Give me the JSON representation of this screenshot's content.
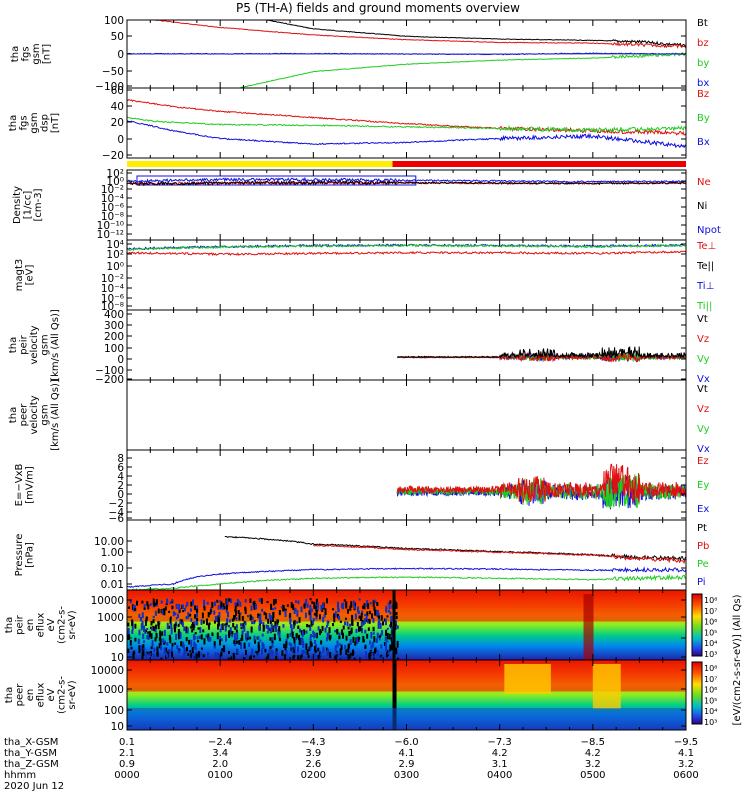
{
  "title": "P5 (TH-A) fields and ground moments overview",
  "colors": {
    "black": "#000000",
    "red": "#e01010",
    "green": "#22cc22",
    "blue": "#1010e0",
    "yellow": "#ffee00",
    "redbar": "#ee0000"
  },
  "panels": [
    {
      "ylabel": [
        "tha",
        "fgs",
        "gsm",
        "[nT]"
      ],
      "ticks": [
        "100",
        "50",
        "0",
        "−50",
        "−100"
      ],
      "legend": [
        {
          "text": "Bt",
          "color": "#000000"
        },
        {
          "text": "bz",
          "color": "#e01010"
        },
        {
          "text": "by",
          "color": "#22cc22"
        },
        {
          "text": "bx",
          "color": "#1010e0"
        }
      ]
    },
    {
      "ylabel": [
        "tha",
        "fgs",
        "gsm",
        "dsp",
        "[nT]"
      ],
      "ticks": [
        "60",
        "40",
        "20",
        "0",
        "−20"
      ],
      "legend": [
        {
          "text": "Bz",
          "color": "#e01010"
        },
        {
          "text": "By",
          "color": "#22cc22"
        },
        {
          "text": "Bx",
          "color": "#1010e0"
        }
      ]
    },
    {
      "ylabel": [
        "Density",
        "[1/cc]",
        "[cm-3]"
      ],
      "ticks": [
        "10²",
        "10⁰",
        "10⁻²",
        "10⁻⁴",
        "10⁻⁶",
        "10⁻⁸",
        "10⁻¹⁰",
        "10⁻¹²"
      ],
      "legend": [
        {
          "text": "Ne",
          "color": "#e01010"
        },
        {
          "text": "Ni",
          "color": "#000000"
        },
        {
          "text": "Npot",
          "color": "#1010e0"
        }
      ]
    },
    {
      "ylabel": [
        "magt3",
        "[eV]"
      ],
      "ticks": [
        "10⁴",
        "10²",
        "10⁰",
        "10⁻²",
        "10⁻⁴",
        "10⁻⁶",
        "10⁻⁸"
      ],
      "legend": [
        {
          "text": "Te⊥",
          "color": "#e01010"
        },
        {
          "text": "Te||",
          "color": "#000000"
        },
        {
          "text": "Ti⊥",
          "color": "#1010e0"
        },
        {
          "text": "Ti||",
          "color": "#22cc22"
        }
      ]
    },
    {
      "ylabel": [
        "tha",
        "peir",
        "velocity",
        "gsm",
        "[km/s (All Qs)]"
      ],
      "ticks": [
        "400",
        "300",
        "200",
        "100",
        "0",
        "−100",
        "−200"
      ],
      "legend": [
        {
          "text": "Vt",
          "color": "#000000"
        },
        {
          "text": "Vz",
          "color": "#e01010"
        },
        {
          "text": "Vy",
          "color": "#22cc22"
        },
        {
          "text": "Vx",
          "color": "#1010e0"
        }
      ]
    },
    {
      "ylabel": [
        "tha",
        "peer",
        "velocity",
        "gsm",
        "[km/s (All Qs)]"
      ],
      "ticks": [],
      "legend": [
        {
          "text": "Vt",
          "color": "#000000"
        },
        {
          "text": "Vz",
          "color": "#e01010"
        },
        {
          "text": "Vy",
          "color": "#22cc22"
        },
        {
          "text": "Vx",
          "color": "#1010e0"
        }
      ]
    },
    {
      "ylabel": [
        "E=−VxB",
        "[mV/m]"
      ],
      "ticks": [
        "8",
        "6",
        "4",
        "2",
        "0",
        "−2",
        "−4",
        "−6"
      ],
      "legend": [
        {
          "text": "Ez",
          "color": "#e01010"
        },
        {
          "text": "Ey",
          "color": "#22cc22"
        },
        {
          "text": "Ex",
          "color": "#1010e0"
        }
      ]
    },
    {
      "ylabel": [
        "Pressure",
        "[nPa]"
      ],
      "ticks": [
        "10.00",
        "1.00",
        "0.10",
        "0.01"
      ],
      "legend": [
        {
          "text": "Pt",
          "color": "#000000"
        },
        {
          "text": "Pb",
          "color": "#e01010"
        },
        {
          "text": "Pe",
          "color": "#22cc22"
        },
        {
          "text": "Pi",
          "color": "#1010e0"
        }
      ]
    },
    {
      "ylabel": [
        "tha",
        "peir",
        "en",
        "eflux",
        "eV",
        "(cm2-s-",
        "sr-eV)"
      ],
      "ticks": [
        "10000",
        "1000",
        "100",
        "10"
      ],
      "legend": []
    },
    {
      "ylabel": [
        "tha",
        "peer",
        "en",
        "eflux",
        "eV",
        "(cm2-s-",
        "sr-eV)"
      ],
      "ticks": [
        "10000",
        "1000",
        "100",
        "10"
      ],
      "legend": []
    }
  ],
  "colorbar": {
    "label": "[eV/(cm2-s-sr-eV)] (All Qs)",
    "ticks_top": [
      "10⁸",
      "10⁷",
      "10⁶",
      "10⁵",
      "10⁴",
      "10³"
    ],
    "ticks_bottom": [
      "10⁸",
      "10⁷",
      "10⁶",
      "10⁵",
      "10⁴",
      "10³"
    ]
  },
  "xaxis": {
    "rows": [
      {
        "label": "tha_X-GSM",
        "values": [
          "0.1",
          "−2.4",
          "−4.3",
          "−6.0",
          "−7.3",
          "−8.5",
          "−9.5"
        ]
      },
      {
        "label": "tha_Y-GSM",
        "values": [
          "2.1",
          "3.4",
          "3.9",
          "4.1",
          "4.2",
          "4.2",
          "4.1"
        ]
      },
      {
        "label": "tha_Z-GSM",
        "values": [
          "0.9",
          "2.0",
          "2.6",
          "2.9",
          "3.1",
          "3.2",
          "3.2"
        ]
      },
      {
        "label": "hhmm",
        "values": [
          "0000",
          "0100",
          "0200",
          "0300",
          "0400",
          "0500",
          "0600"
        ]
      }
    ],
    "date": "2020 Jun 12"
  },
  "chart_data": [
    {
      "type": "line",
      "ylabel": "tha fgs gsm [nT]",
      "x_hhmm": [
        "0000",
        "0100",
        "0200",
        "0300",
        "0400",
        "0500",
        "0600"
      ],
      "ylim": [
        -100,
        100
      ],
      "series": [
        {
          "name": "Bt",
          "x_hours": [
            1.5,
            2,
            3,
            4,
            5,
            5.5,
            6
          ],
          "values": [
            100,
            74,
            52,
            44,
            40,
            36,
            25
          ]
        },
        {
          "name": "bz",
          "x_hours": [
            0.3,
            1,
            2,
            3,
            4,
            5,
            6
          ],
          "values": [
            100,
            78,
            56,
            42,
            34,
            32,
            22
          ]
        },
        {
          "name": "by",
          "x_hours": [
            1.2,
            2,
            3,
            4,
            5,
            6
          ],
          "values": [
            -100,
            -52,
            -30,
            -18,
            -12,
            0
          ]
        }
      ]
    },
    {
      "type": "line",
      "ylabel": "tha fgs gsm dsp [nT]",
      "ylim": [
        -30,
        60
      ],
      "series": [
        {
          "name": "Bz",
          "x_hours": [
            0,
            0.5,
            1,
            2,
            3,
            4,
            5,
            6
          ],
          "values": [
            45,
            36,
            30,
            22,
            14,
            8,
            5,
            2
          ]
        },
        {
          "name": "By",
          "x_hours": [
            0,
            0.3,
            1,
            2,
            3,
            4,
            5,
            6
          ],
          "values": [
            22,
            17,
            13,
            12,
            10,
            8,
            6,
            8
          ]
        },
        {
          "name": "Bx",
          "x_hours": [
            0,
            0.5,
            1,
            2,
            3,
            4,
            5,
            6
          ],
          "values": [
            18,
            5,
            -5,
            -12,
            -10,
            -5,
            -2,
            -15
          ]
        }
      ]
    },
    {
      "type": "line",
      "ylabel": "Density [1/cc] [cm-3]",
      "yscale": "log",
      "series": [
        {
          "name": "Ne",
          "x_hours": [
            0,
            1,
            2,
            3,
            4,
            5,
            6
          ],
          "values": [
            0.3,
            0.5,
            0.5,
            0.5,
            0.4,
            0.4,
            0.5
          ]
        },
        {
          "name": "Ni",
          "x_hours": [
            0,
            1,
            2,
            3,
            4,
            5,
            6
          ],
          "values": [
            0.3,
            0.5,
            0.6,
            0.6,
            0.5,
            0.4,
            0.5
          ]
        },
        {
          "name": "Npot",
          "x_hours": [
            0,
            1,
            2,
            3,
            4,
            5,
            6
          ],
          "values": [
            1,
            3,
            3,
            2,
            1.5,
            1,
            1.2
          ]
        }
      ]
    },
    {
      "type": "line",
      "ylabel": "magt3 [eV]",
      "yscale": "log",
      "series": [
        {
          "name": "Te⊥",
          "x_hours": [
            0,
            1,
            2,
            3,
            4,
            5,
            6
          ],
          "values": [
            200,
            100,
            150,
            200,
            200,
            150,
            300
          ]
        },
        {
          "name": "Ti⊥",
          "x_hours": [
            0,
            1,
            2,
            3,
            4,
            5,
            6
          ],
          "values": [
            1000,
            3000,
            5000,
            6000,
            5000,
            4000,
            6000
          ]
        },
        {
          "name": "Ti||",
          "x_hours": [
            0,
            1,
            2,
            3,
            4,
            5,
            6
          ],
          "values": [
            800,
            2500,
            4000,
            5000,
            4000,
            3000,
            5000
          ]
        }
      ]
    },
    {
      "type": "line",
      "ylabel": "tha peir velocity gsm [km/s (All Qs)]",
      "ylim": [
        -200,
        400
      ],
      "series": [
        {
          "name": "Vt",
          "x_hours": [
            2.9,
            4,
            4.3,
            5,
            5.3,
            5.6,
            6
          ],
          "values": [
            10,
            20,
            100,
            60,
            150,
            60,
            40
          ]
        },
        {
          "name": "Vx",
          "x_hours": [
            2.9,
            4,
            4.3,
            5,
            5.3,
            6
          ],
          "values": [
            0,
            -10,
            -60,
            -20,
            -70,
            -20
          ]
        }
      ]
    },
    {
      "type": "line",
      "ylabel": "E=−VxB [mV/m]",
      "ylim": [
        -6,
        8
      ],
      "series": [
        {
          "name": "Ez",
          "x_hours": [
            2.9,
            4,
            4.3,
            5,
            5.3,
            5.5,
            6
          ],
          "values": [
            0.5,
            1,
            4,
            2,
            4,
            1,
            0.5
          ]
        },
        {
          "name": "Ey",
          "x_hours": [
            2.9,
            4,
            4.3,
            5,
            5.3,
            6
          ],
          "values": [
            0,
            0.2,
            -2,
            0.5,
            5,
            0.3
          ]
        }
      ]
    },
    {
      "type": "line",
      "ylabel": "Pressure [nPa]",
      "yscale": "log",
      "series": [
        {
          "name": "Pt",
          "x_hours": [
            1.05,
            2,
            3,
            4,
            5,
            5.3,
            6
          ],
          "values": [
            20,
            6,
            3,
            1.8,
            1.1,
            0.8,
            0.6
          ]
        },
        {
          "name": "Pb",
          "x_hours": [
            2,
            3,
            4,
            5,
            5.3,
            6
          ],
          "values": [
            5,
            2.5,
            1.6,
            1,
            0.7,
            0.4
          ]
        },
        {
          "name": "Pi",
          "x_hours": [
            0,
            0.5,
            1,
            2,
            3,
            4,
            5,
            6
          ],
          "values": [
            0.006,
            0.01,
            0.05,
            0.1,
            0.12,
            0.11,
            0.09,
            0.1
          ]
        },
        {
          "name": "Pe",
          "x_hours": [
            0,
            0.5,
            1,
            2,
            3,
            4,
            5,
            6
          ],
          "values": [
            0.004,
            0.005,
            0.01,
            0.025,
            0.03,
            0.025,
            0.02,
            0.03
          ]
        }
      ]
    },
    {
      "type": "heatmap",
      "ylabel": "tha peir en eflux eV (cm2-s-sr-eV)",
      "yscale": "log",
      "ylim": [
        5,
        20000
      ]
    },
    {
      "type": "heatmap",
      "ylabel": "tha peer en eflux eV (cm2-s-sr-eV)",
      "yscale": "log",
      "ylim": [
        5,
        20000
      ]
    }
  ]
}
